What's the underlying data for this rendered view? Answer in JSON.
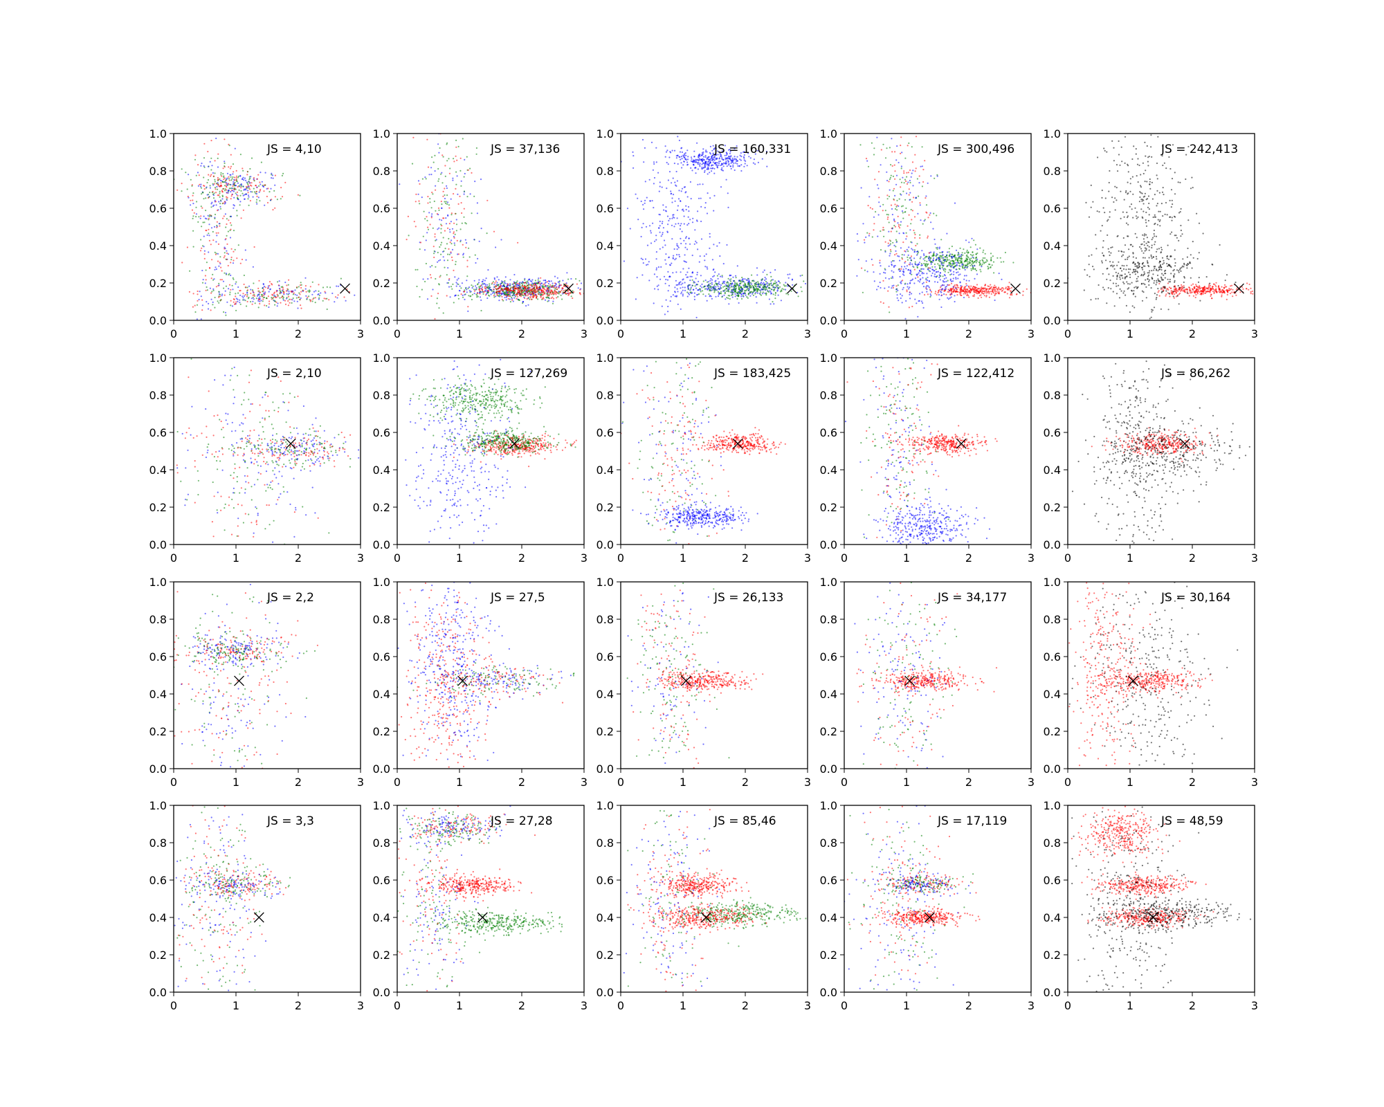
{
  "colors": {
    "blue": "#0000ff",
    "green": "#008000",
    "red": "#ff0000",
    "black": "#000000",
    "marker": "#000000"
  },
  "chart_data": {
    "type": "scatter",
    "layout": "4 rows x 5 columns grid of scatter panels",
    "xlim": [
      0,
      3
    ],
    "ylim": [
      0,
      1
    ],
    "x_ticks": [
      "0",
      "1",
      "2",
      "3"
    ],
    "y_ticks": [
      "0.0",
      "0.2",
      "0.4",
      "0.6",
      "0.8",
      "1.0"
    ],
    "grid": false,
    "marker_symbol": "x",
    "columns": [
      {
        "series_colors": [
          "blue",
          "green",
          "red"
        ]
      },
      {
        "series_colors": [
          "blue",
          "green",
          "red"
        ]
      },
      {
        "series_colors": [
          "blue",
          "green",
          "red"
        ]
      },
      {
        "series_colors": [
          "blue",
          "green",
          "red"
        ]
      },
      {
        "series_colors": [
          "black",
          "red"
        ]
      }
    ],
    "rows": [
      {
        "marker": [
          2.75,
          0.17
        ],
        "panels": [
          {
            "label": "JS = 4,10",
            "clusters": [
              {
                "color": "mixed",
                "x": 1.6,
                "y": 0.14,
                "sx": 0.5,
                "sy": 0.035
              },
              {
                "color": "mixed",
                "x": 1.0,
                "y": 0.71,
                "sx": 0.35,
                "sy": 0.05
              },
              {
                "color": "mixed",
                "x": 0.7,
                "y": 0.5,
                "sx": 0.2,
                "sy": 0.3
              }
            ]
          },
          {
            "label": "JS = 37,136",
            "clusters": [
              {
                "color": "blue",
                "x": 1.9,
                "y": 0.17,
                "sx": 0.5,
                "sy": 0.03
              },
              {
                "color": "green",
                "x": 2.0,
                "y": 0.16,
                "sx": 0.4,
                "sy": 0.025
              },
              {
                "color": "red",
                "x": 2.1,
                "y": 0.16,
                "sx": 0.4,
                "sy": 0.02
              },
              {
                "color": "mixed",
                "x": 0.8,
                "y": 0.55,
                "sx": 0.3,
                "sy": 0.25
              }
            ]
          },
          {
            "label": "JS = 160,331",
            "clusters": [
              {
                "color": "blue",
                "x": 1.8,
                "y": 0.18,
                "sx": 0.5,
                "sy": 0.035
              },
              {
                "color": "green",
                "x": 2.0,
                "y": 0.17,
                "sx": 0.4,
                "sy": 0.025
              },
              {
                "color": "blue",
                "x": 1.5,
                "y": 0.86,
                "sx": 0.3,
                "sy": 0.03
              },
              {
                "color": "blue",
                "x": 0.9,
                "y": 0.5,
                "sx": 0.35,
                "sy": 0.25
              }
            ]
          },
          {
            "label": "JS = 300,496",
            "clusters": [
              {
                "color": "red",
                "x": 2.1,
                "y": 0.16,
                "sx": 0.35,
                "sy": 0.015
              },
              {
                "color": "green",
                "x": 1.8,
                "y": 0.32,
                "sx": 0.35,
                "sy": 0.03
              },
              {
                "color": "blue",
                "x": 1.3,
                "y": 0.25,
                "sx": 0.4,
                "sy": 0.08
              },
              {
                "color": "mixed",
                "x": 0.9,
                "y": 0.6,
                "sx": 0.3,
                "sy": 0.25
              }
            ]
          },
          {
            "label": "JS = 242,413",
            "clusters": [
              {
                "color": "red",
                "x": 2.2,
                "y": 0.16,
                "sx": 0.35,
                "sy": 0.015
              },
              {
                "color": "black",
                "x": 1.3,
                "y": 0.25,
                "sx": 0.45,
                "sy": 0.08
              },
              {
                "color": "black",
                "x": 1.2,
                "y": 0.6,
                "sx": 0.35,
                "sy": 0.25
              }
            ]
          }
        ]
      },
      {
        "marker": [
          1.88,
          0.54
        ],
        "panels": [
          {
            "label": "JS = 2,10",
            "clusters": [
              {
                "color": "mixed",
                "x": 1.9,
                "y": 0.51,
                "sx": 0.5,
                "sy": 0.045
              },
              {
                "color": "mixed",
                "x": 1.2,
                "y": 0.45,
                "sx": 0.6,
                "sy": 0.25
              }
            ]
          },
          {
            "label": "JS = 127,269",
            "clusters": [
              {
                "color": "red",
                "x": 1.9,
                "y": 0.53,
                "sx": 0.35,
                "sy": 0.025
              },
              {
                "color": "green",
                "x": 1.7,
                "y": 0.55,
                "sx": 0.4,
                "sy": 0.03
              },
              {
                "color": "green",
                "x": 1.3,
                "y": 0.77,
                "sx": 0.4,
                "sy": 0.05
              },
              {
                "color": "blue",
                "x": 1.0,
                "y": 0.45,
                "sx": 0.4,
                "sy": 0.25
              }
            ]
          },
          {
            "label": "JS = 183,425",
            "clusters": [
              {
                "color": "red",
                "x": 1.9,
                "y": 0.54,
                "sx": 0.3,
                "sy": 0.025
              },
              {
                "color": "mixed",
                "x": 0.9,
                "y": 0.5,
                "sx": 0.35,
                "sy": 0.3
              },
              {
                "color": "blue",
                "x": 1.3,
                "y": 0.15,
                "sx": 0.35,
                "sy": 0.03
              }
            ]
          },
          {
            "label": "JS = 122,412",
            "clusters": [
              {
                "color": "red",
                "x": 1.6,
                "y": 0.54,
                "sx": 0.3,
                "sy": 0.025
              },
              {
                "color": "mixed",
                "x": 0.9,
                "y": 0.55,
                "sx": 0.3,
                "sy": 0.3
              },
              {
                "color": "blue",
                "x": 1.3,
                "y": 0.1,
                "sx": 0.35,
                "sy": 0.06
              }
            ]
          },
          {
            "label": "JS = 86,262",
            "clusters": [
              {
                "color": "red",
                "x": 1.5,
                "y": 0.54,
                "sx": 0.35,
                "sy": 0.03
              },
              {
                "color": "black",
                "x": 1.6,
                "y": 0.5,
                "sx": 0.6,
                "sy": 0.08
              },
              {
                "color": "black",
                "x": 1.1,
                "y": 0.5,
                "sx": 0.35,
                "sy": 0.3
              }
            ]
          }
        ]
      },
      {
        "marker": [
          1.05,
          0.47
        ],
        "panels": [
          {
            "label": "JS = 2,2",
            "clusters": [
              {
                "color": "mixed",
                "x": 1.0,
                "y": 0.63,
                "sx": 0.4,
                "sy": 0.04
              },
              {
                "color": "mixed",
                "x": 0.9,
                "y": 0.45,
                "sx": 0.45,
                "sy": 0.28
              }
            ]
          },
          {
            "label": "JS = 27,5",
            "clusters": [
              {
                "color": "mixed",
                "x": 1.6,
                "y": 0.47,
                "sx": 0.55,
                "sy": 0.04
              },
              {
                "color": "red",
                "x": 0.8,
                "y": 0.45,
                "sx": 0.35,
                "sy": 0.25
              },
              {
                "color": "blue",
                "x": 0.9,
                "y": 0.6,
                "sx": 0.35,
                "sy": 0.25
              }
            ]
          },
          {
            "label": "JS = 26,133",
            "clusters": [
              {
                "color": "red",
                "x": 1.3,
                "y": 0.47,
                "sx": 0.35,
                "sy": 0.025
              },
              {
                "color": "mixed",
                "x": 0.8,
                "y": 0.5,
                "sx": 0.3,
                "sy": 0.3
              }
            ]
          },
          {
            "label": "JS = 34,177",
            "clusters": [
              {
                "color": "red",
                "x": 1.3,
                "y": 0.47,
                "sx": 0.35,
                "sy": 0.025
              },
              {
                "color": "mixed",
                "x": 1.0,
                "y": 0.5,
                "sx": 0.35,
                "sy": 0.3
              }
            ]
          },
          {
            "label": "JS = 30,164",
            "clusters": [
              {
                "color": "red",
                "x": 1.3,
                "y": 0.47,
                "sx": 0.4,
                "sy": 0.03
              },
              {
                "color": "red",
                "x": 0.6,
                "y": 0.55,
                "sx": 0.3,
                "sy": 0.3
              },
              {
                "color": "black",
                "x": 1.3,
                "y": 0.5,
                "sx": 0.5,
                "sy": 0.28
              }
            ]
          }
        ]
      },
      {
        "marker": [
          1.37,
          0.4
        ],
        "panels": [
          {
            "label": "JS = 3,3",
            "clusters": [
              {
                "color": "mixed",
                "x": 1.0,
                "y": 0.58,
                "sx": 0.4,
                "sy": 0.04
              },
              {
                "color": "mixed",
                "x": 0.7,
                "y": 0.5,
                "sx": 0.35,
                "sy": 0.3
              }
            ]
          },
          {
            "label": "JS = 27,28",
            "clusters": [
              {
                "color": "red",
                "x": 1.2,
                "y": 0.57,
                "sx": 0.35,
                "sy": 0.025
              },
              {
                "color": "green",
                "x": 1.6,
                "y": 0.37,
                "sx": 0.45,
                "sy": 0.03
              },
              {
                "color": "mixed",
                "x": 0.9,
                "y": 0.88,
                "sx": 0.4,
                "sy": 0.04
              },
              {
                "color": "mixed",
                "x": 0.6,
                "y": 0.5,
                "sx": 0.3,
                "sy": 0.3
              }
            ]
          },
          {
            "label": "JS = 85,46",
            "clusters": [
              {
                "color": "green",
                "x": 1.9,
                "y": 0.42,
                "sx": 0.45,
                "sy": 0.03
              },
              {
                "color": "red",
                "x": 1.3,
                "y": 0.4,
                "sx": 0.4,
                "sy": 0.03
              },
              {
                "color": "red",
                "x": 1.2,
                "y": 0.57,
                "sx": 0.3,
                "sy": 0.03
              },
              {
                "color": "mixed",
                "x": 0.8,
                "y": 0.5,
                "sx": 0.35,
                "sy": 0.3
              }
            ]
          },
          {
            "label": "JS = 17,119",
            "clusters": [
              {
                "color": "red",
                "x": 1.3,
                "y": 0.4,
                "sx": 0.3,
                "sy": 0.02
              },
              {
                "color": "mixed",
                "x": 1.2,
                "y": 0.58,
                "sx": 0.35,
                "sy": 0.025
              },
              {
                "color": "mixed",
                "x": 0.9,
                "y": 0.5,
                "sx": 0.35,
                "sy": 0.3
              }
            ]
          },
          {
            "label": "JS = 48,59",
            "clusters": [
              {
                "color": "red",
                "x": 1.3,
                "y": 0.4,
                "sx": 0.35,
                "sy": 0.025
              },
              {
                "color": "red",
                "x": 1.2,
                "y": 0.57,
                "sx": 0.35,
                "sy": 0.025
              },
              {
                "color": "red",
                "x": 0.8,
                "y": 0.85,
                "sx": 0.3,
                "sy": 0.06
              },
              {
                "color": "black",
                "x": 1.6,
                "y": 0.42,
                "sx": 0.55,
                "sy": 0.04
              },
              {
                "color": "black",
                "x": 1.0,
                "y": 0.5,
                "sx": 0.4,
                "sy": 0.3
              }
            ]
          }
        ]
      }
    ]
  }
}
